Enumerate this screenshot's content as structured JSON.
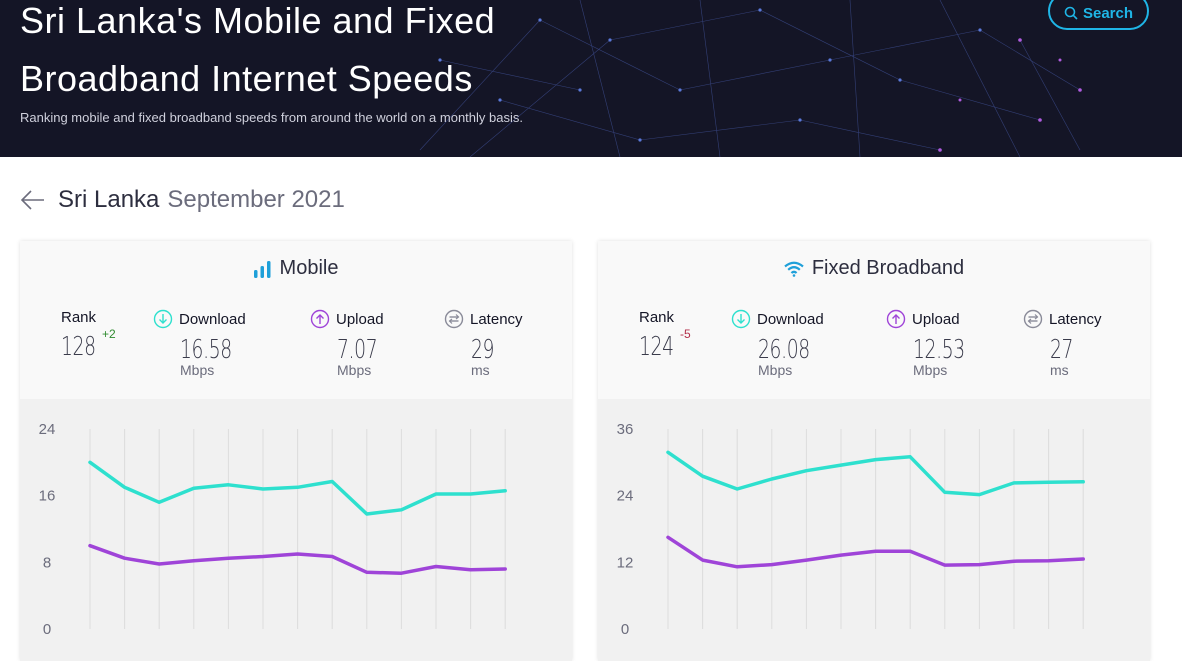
{
  "hero": {
    "title_line1": "Sri Lanka's Mobile and Fixed",
    "title_line2": "Broadband Internet Speeds",
    "subtitle": "Ranking mobile and fixed broadband speeds from around the world on a monthly basis.",
    "search_label": "Search"
  },
  "breadcrumb": {
    "country": "Sri Lanka",
    "period": "September 2021"
  },
  "colors": {
    "download": "#2ee0ce",
    "upload": "#9f44d8",
    "accent": "#1fb5e6",
    "rank_up": "#2f8a2f",
    "rank_down": "#b3304a"
  },
  "mobile": {
    "title": "Mobile",
    "rank_label": "Rank",
    "rank": "128",
    "rank_change": "+2",
    "download_label": "Download",
    "download": "16.58",
    "download_unit": "Mbps",
    "upload_label": "Upload",
    "upload": "7.07",
    "upload_unit": "Mbps",
    "latency_label": "Latency",
    "latency": "29",
    "latency_unit": "ms"
  },
  "fixed": {
    "title": "Fixed Broadband",
    "rank_label": "Rank",
    "rank": "124",
    "rank_change": "-5",
    "download_label": "Download",
    "download": "26.08",
    "download_unit": "Mbps",
    "upload_label": "Upload",
    "upload": "12.53",
    "upload_unit": "Mbps",
    "latency_label": "Latency",
    "latency": "27",
    "latency_unit": "ms"
  },
  "chart_data": [
    {
      "type": "line",
      "yticks": [
        "24",
        "16",
        "8",
        "0"
      ],
      "ylim": [
        0,
        24
      ],
      "series": [
        {
          "values": [
            20,
            17,
            15.2,
            16.9,
            17.3,
            16.8,
            17,
            17.7,
            13.8,
            14.3,
            16.2,
            16.2,
            16.6
          ]
        },
        {
          "values": [
            10,
            8.5,
            7.8,
            8.2,
            8.5,
            8.7,
            9,
            8.7,
            6.8,
            6.7,
            7.5,
            7.1,
            7.2
          ]
        }
      ]
    },
    {
      "type": "line",
      "yticks": [
        "36",
        "24",
        "12",
        "0"
      ],
      "ylim": [
        0,
        36
      ],
      "series": [
        {
          "values": [
            31.8,
            27.5,
            25.2,
            27,
            28.5,
            29.5,
            30.5,
            31,
            24.6,
            24.2,
            26.3,
            26.4,
            26.5
          ]
        },
        {
          "values": [
            16.5,
            12.4,
            11.2,
            11.6,
            12.4,
            13.3,
            14,
            14,
            11.5,
            11.6,
            12.2,
            12.3,
            12.6
          ]
        }
      ]
    }
  ]
}
